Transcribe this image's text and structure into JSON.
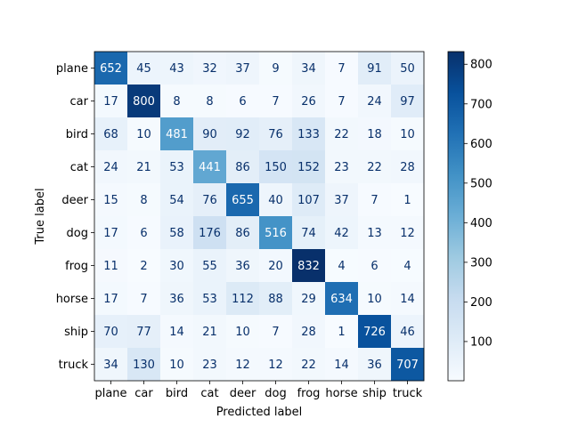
{
  "chart_data": {
    "type": "heatmap",
    "title": "",
    "xlabel": "Predicted label",
    "ylabel": "True label",
    "x_categories": [
      "plane",
      "car",
      "bird",
      "cat",
      "deer",
      "dog",
      "frog",
      "horse",
      "ship",
      "truck"
    ],
    "y_categories": [
      "plane",
      "car",
      "bird",
      "cat",
      "deer",
      "dog",
      "frog",
      "horse",
      "ship",
      "truck"
    ],
    "values": [
      [
        652,
        45,
        43,
        32,
        37,
        9,
        34,
        7,
        91,
        50
      ],
      [
        17,
        800,
        8,
        8,
        6,
        7,
        26,
        7,
        24,
        97
      ],
      [
        68,
        10,
        481,
        90,
        92,
        76,
        133,
        22,
        18,
        10
      ],
      [
        24,
        21,
        53,
        441,
        86,
        150,
        152,
        23,
        22,
        28
      ],
      [
        15,
        8,
        54,
        76,
        655,
        40,
        107,
        37,
        7,
        1
      ],
      [
        17,
        6,
        58,
        176,
        86,
        516,
        74,
        42,
        13,
        12
      ],
      [
        11,
        2,
        30,
        55,
        36,
        20,
        832,
        4,
        6,
        4
      ],
      [
        17,
        7,
        36,
        53,
        112,
        88,
        29,
        634,
        10,
        14
      ],
      [
        70,
        77,
        14,
        21,
        10,
        7,
        28,
        1,
        726,
        46
      ],
      [
        34,
        130,
        10,
        23,
        12,
        12,
        22,
        14,
        36,
        707
      ]
    ],
    "colormap": "Blues",
    "value_range": [
      1,
      832
    ],
    "colorbar": {
      "ticks": [
        100,
        200,
        300,
        400,
        500,
        600,
        700,
        800
      ]
    },
    "grid": false
  }
}
